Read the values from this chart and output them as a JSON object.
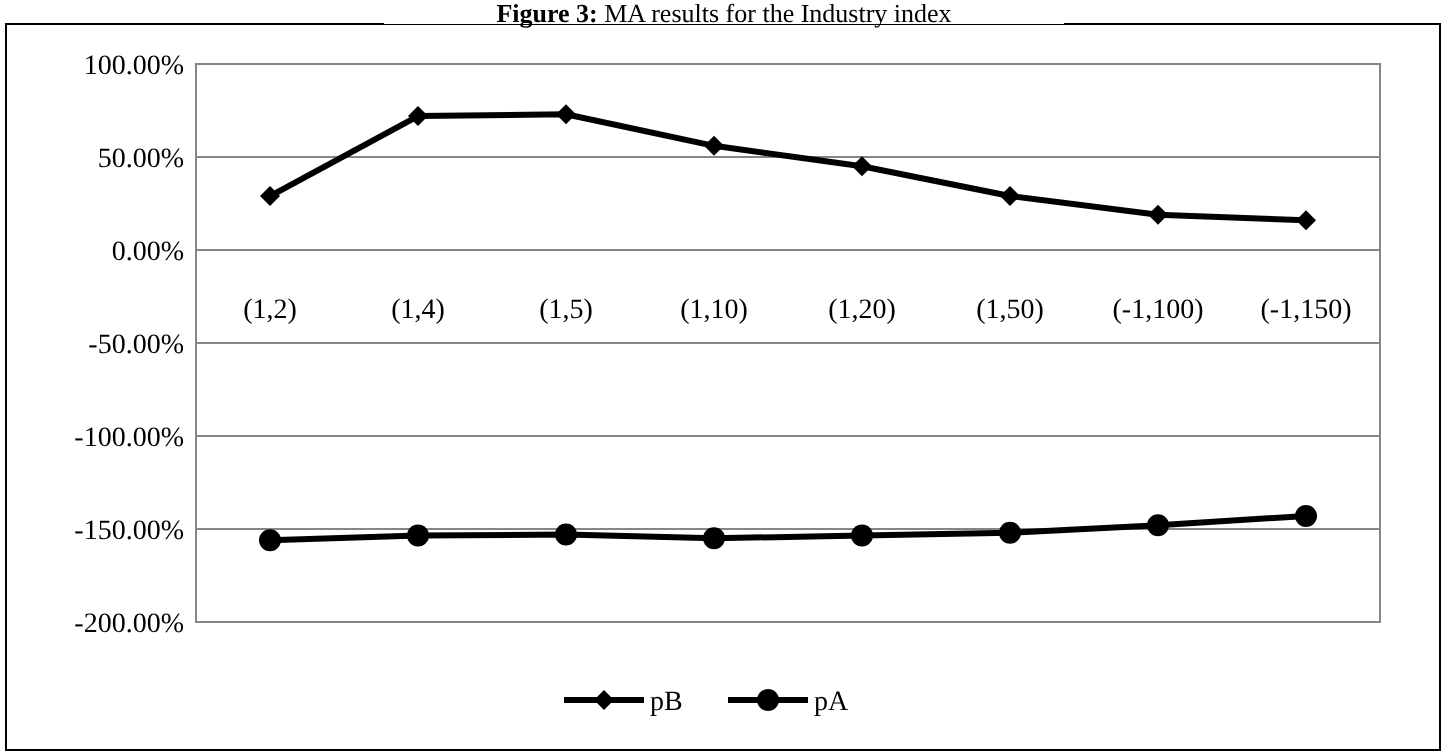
{
  "chart_data": {
    "type": "line",
    "title": "Figure 3: MA results for the Industry index",
    "categories": [
      "(1,2)",
      "(1,4)",
      "(1,5)",
      "(1,10)",
      "(1,20)",
      "(1,50)",
      "(-1,100)",
      "(-1,150)"
    ],
    "series": [
      {
        "name": "pB",
        "color": "#000000",
        "marker": "diamond",
        "values": [
          29,
          72,
          73,
          56,
          45,
          29,
          19,
          16
        ]
      },
      {
        "name": "pA",
        "color": "#000000",
        "marker": "circle",
        "values": [
          -156,
          -153.5,
          -153,
          -155,
          -153.5,
          -152,
          -148,
          -143
        ]
      }
    ],
    "ylim": [
      -200,
      100
    ],
    "yticks": [
      {
        "value": 100,
        "label": "100.00%"
      },
      {
        "value": 50,
        "label": "50.00%"
      },
      {
        "value": 0,
        "label": "0.00%"
      },
      {
        "value": -50,
        "label": "-50.00%"
      },
      {
        "value": -100,
        "label": "-100.00%"
      },
      {
        "value": -150,
        "label": "-150.00%"
      },
      {
        "value": -200,
        "label": "-200.00%"
      }
    ],
    "grid": "y",
    "legend": "bottom",
    "line_style": "solid"
  }
}
